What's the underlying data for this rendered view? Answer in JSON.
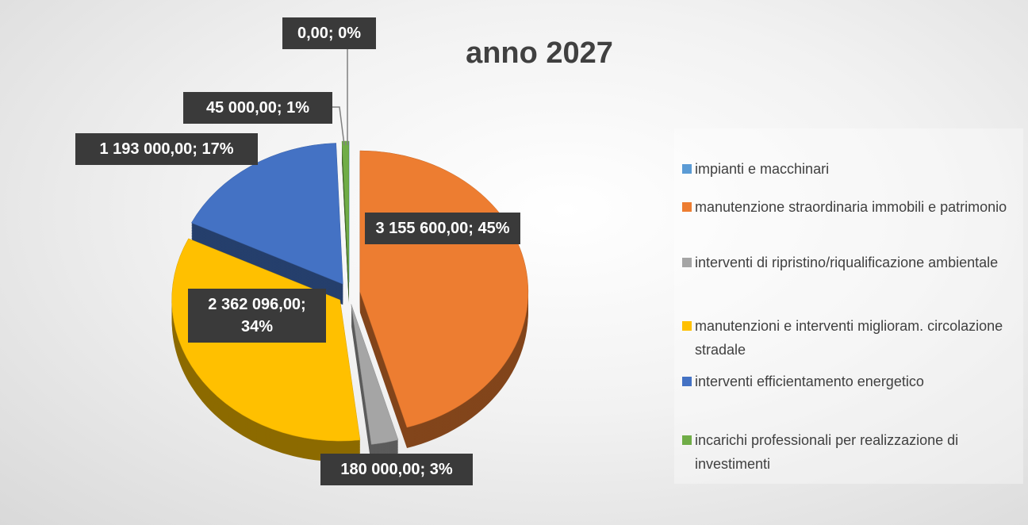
{
  "chart_data": {
    "type": "pie",
    "title": "anno 2027",
    "categories": [
      "impianti e macchinari",
      "manutenzione straordinaria immobili e patrimonio",
      "interventi di ripristino/riqualificazione ambientale",
      "manutenzioni e interventi miglioram. circolazione stradale",
      "interventi efficientamento energetico",
      "incarichi professionali per realizzazione di investimenti"
    ],
    "values": [
      0,
      3155600,
      180000,
      2362096,
      1193000,
      45000
    ],
    "value_labels": [
      "0,00; 0%",
      "3 155 600,00; 45%",
      "180 000,00; 3%",
      "2 362 096,00; 34%",
      "1 193 000,00; 17%",
      "45 000,00; 1%"
    ],
    "colors": [
      "#5b9bd5",
      "#ed7d31",
      "#a5a5a5",
      "#ffc000",
      "#4472c4",
      "#70ad47"
    ],
    "legend": "right"
  }
}
